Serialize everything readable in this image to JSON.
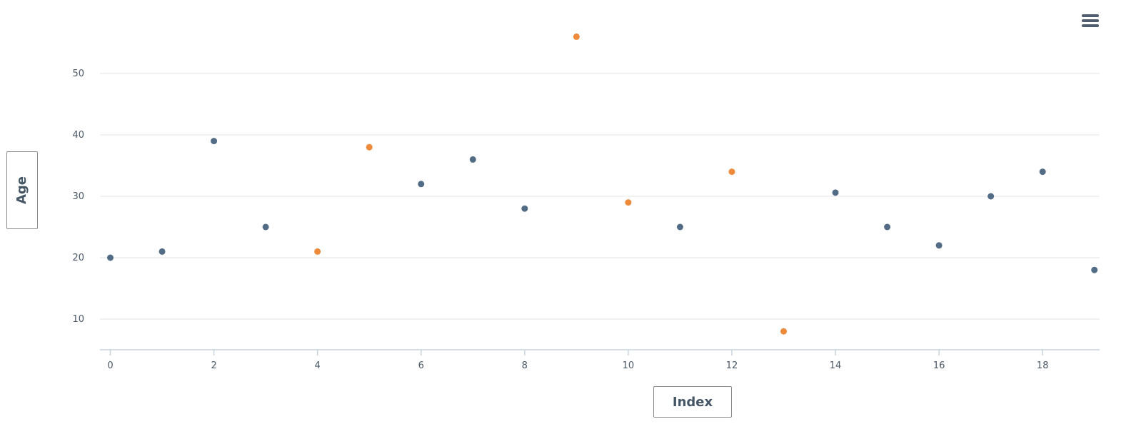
{
  "chart_data": {
    "type": "scatter",
    "title": "",
    "xlabel": "Index",
    "ylabel": "Age",
    "xlim": [
      -0.2,
      19.1
    ],
    "ylim": [
      5,
      55
    ],
    "x_ticks": [
      0,
      2,
      4,
      6,
      8,
      10,
      12,
      14,
      16,
      18
    ],
    "y_ticks": [
      10,
      20,
      30,
      40,
      50
    ],
    "grid": "horizontal",
    "colors": {
      "blue": "#536c85",
      "orange": "#ef8a3b",
      "grid": "#e6e6e6",
      "axis": "#c9d3df",
      "text": "#4a5766"
    },
    "points": [
      {
        "x": 0,
        "y": 20,
        "group": "blue"
      },
      {
        "x": 1,
        "y": 21,
        "group": "blue"
      },
      {
        "x": 2,
        "y": 39,
        "group": "blue"
      },
      {
        "x": 3,
        "y": 25,
        "group": "blue"
      },
      {
        "x": 4,
        "y": 21,
        "group": "orange"
      },
      {
        "x": 5,
        "y": 38,
        "group": "orange"
      },
      {
        "x": 6,
        "y": 32,
        "group": "blue"
      },
      {
        "x": 7,
        "y": 36,
        "group": "blue"
      },
      {
        "x": 8,
        "y": 28,
        "group": "blue"
      },
      {
        "x": 9,
        "y": 56,
        "group": "orange"
      },
      {
        "x": 10,
        "y": 29,
        "group": "orange"
      },
      {
        "x": 11,
        "y": 25,
        "group": "blue"
      },
      {
        "x": 12,
        "y": 34,
        "group": "orange"
      },
      {
        "x": 13,
        "y": 8,
        "group": "orange"
      },
      {
        "x": 14,
        "y": 30.6,
        "group": "blue"
      },
      {
        "x": 15,
        "y": 25,
        "group": "blue"
      },
      {
        "x": 16,
        "y": 22,
        "group": "blue"
      },
      {
        "x": 17,
        "y": 30,
        "group": "blue"
      },
      {
        "x": 18,
        "y": 34,
        "group": "blue"
      },
      {
        "x": 19,
        "y": 18,
        "group": "blue"
      }
    ]
  },
  "menu": {
    "icon": "hamburger-menu-icon"
  }
}
